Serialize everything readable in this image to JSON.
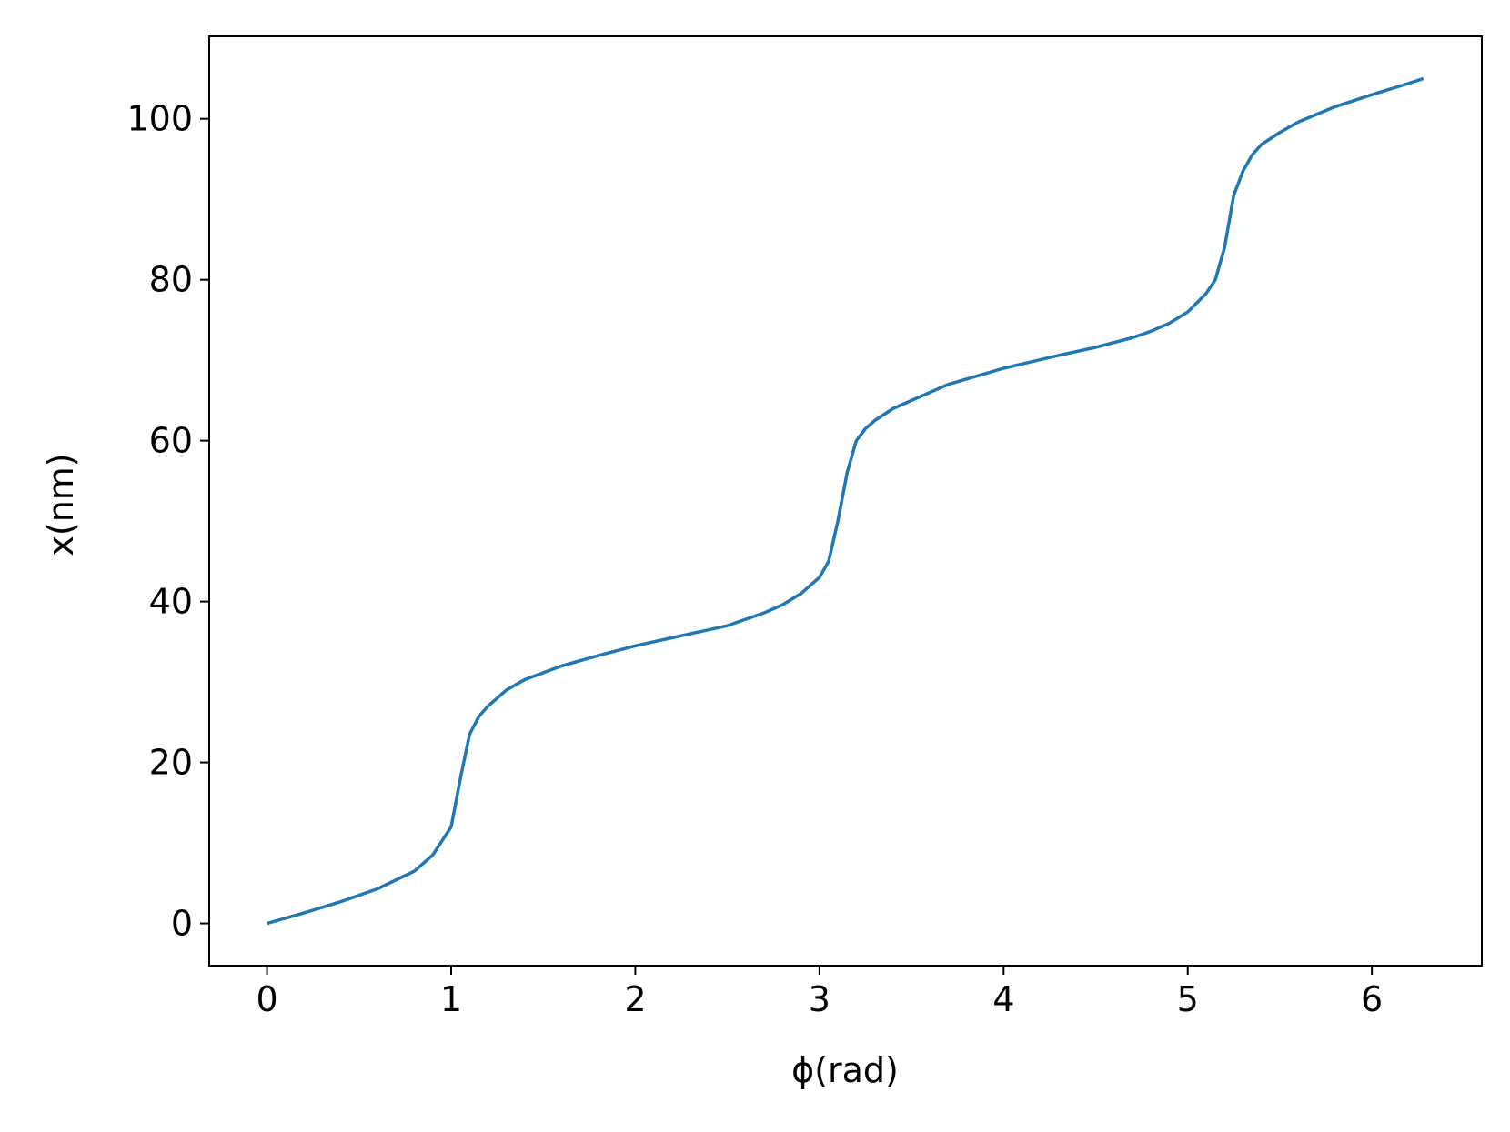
{
  "chart_data": {
    "type": "line",
    "x_label": "ϕ(rad)",
    "y_label": "x(nm)",
    "x": [
      0,
      0.2,
      0.4,
      0.6,
      0.8,
      0.9,
      1.0,
      1.05,
      1.1,
      1.15,
      1.2,
      1.3,
      1.4,
      1.6,
      1.8,
      2.0,
      2.3,
      2.5,
      2.7,
      2.8,
      2.9,
      3.0,
      3.05,
      3.1,
      3.15,
      3.2,
      3.25,
      3.3,
      3.4,
      3.5,
      3.7,
      4.0,
      4.3,
      4.5,
      4.7,
      4.8,
      4.9,
      5.0,
      5.1,
      5.15,
      5.2,
      5.25,
      5.3,
      5.35,
      5.4,
      5.5,
      5.6,
      5.8,
      6.0,
      6.2,
      6.28
    ],
    "series": [
      {
        "color": "#1f77b4",
        "values": [
          0,
          1.3,
          2.7,
          4.3,
          6.5,
          8.5,
          12,
          18,
          23.5,
          25.7,
          27,
          29,
          30.3,
          32,
          33.3,
          34.5,
          36,
          37,
          38.6,
          39.6,
          41,
          43,
          45,
          50,
          56,
          60,
          61.5,
          62.5,
          64,
          65,
          67,
          69,
          70.6,
          71.6,
          72.8,
          73.6,
          74.6,
          76,
          78.3,
          80,
          84,
          90.5,
          93.5,
          95.5,
          96.8,
          98.3,
          99.6,
          101.5,
          103,
          104.4,
          105
        ]
      }
    ],
    "xlim": [
      -0.314,
      6.597
    ],
    "ylim": [
      -5.25,
      110.25
    ],
    "xticks": [
      0,
      1,
      2,
      3,
      4,
      5,
      6
    ],
    "yticks": [
      0,
      20,
      40,
      60,
      80,
      100
    ]
  }
}
